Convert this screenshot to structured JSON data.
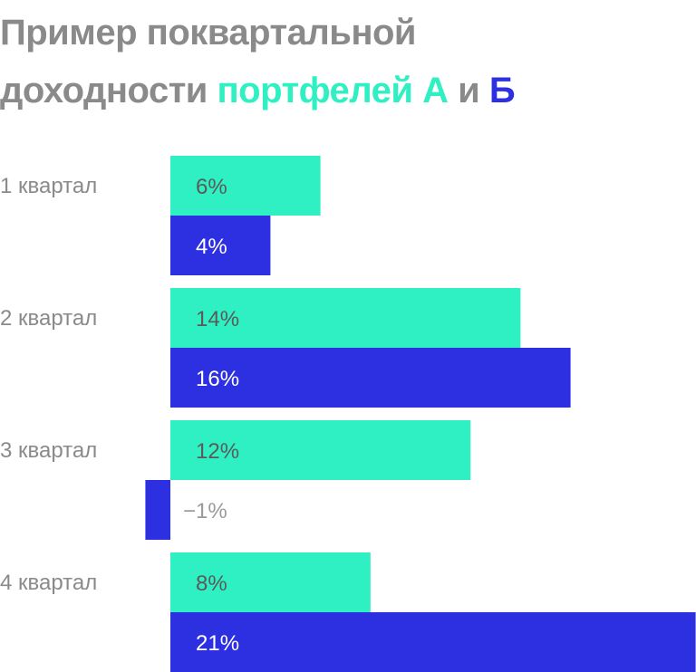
{
  "title": {
    "line1": "Пример поквартальной",
    "line2_prefix": "доходности ",
    "line2_a": "портфелей А",
    "line2_mid": " и ",
    "line2_b": "Б"
  },
  "colors": {
    "series_a": "#2ef0c2",
    "series_b": "#2d30e0",
    "title_gray": "#8a8a8a",
    "label_on_a": "#5a5a5a",
    "label_on_b": "#ffffff",
    "label_outside": "#9a9a9a"
  },
  "chart_data": {
    "type": "bar",
    "orientation": "horizontal",
    "categories": [
      "1 квартал",
      "2 квартал",
      "3 квартал",
      "4 квартал"
    ],
    "series": [
      {
        "name": "портфелей А",
        "values": [
          6,
          14,
          12,
          8
        ],
        "labels": [
          "6%",
          "14%",
          "12%",
          "8%"
        ]
      },
      {
        "name": "Б",
        "values": [
          4,
          16,
          -1,
          21
        ],
        "labels": [
          "4%",
          "16%",
          "−1%",
          "21%"
        ]
      }
    ],
    "unit": "%",
    "xlim": [
      -1,
      21
    ],
    "grid": false,
    "legend": "in title"
  }
}
